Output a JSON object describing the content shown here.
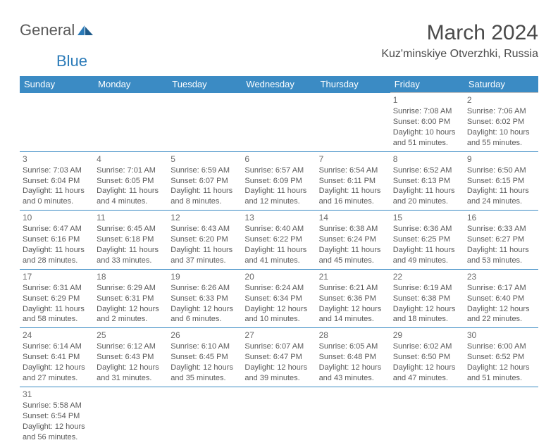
{
  "logo": {
    "general": "General",
    "blue": "Blue"
  },
  "header": {
    "month_title": "March 2024",
    "location": "Kuz'minskiye Otverzhki, Russia"
  },
  "day_names": [
    "Sunday",
    "Monday",
    "Tuesday",
    "Wednesday",
    "Thursday",
    "Friday",
    "Saturday"
  ],
  "colors": {
    "header_bg": "#3b8bc4",
    "header_text": "#ffffff",
    "cell_border_top": "#bfbfbf",
    "cell_border_bottom": "#3b8bc4",
    "text": "#5a5a5a",
    "logo_blue": "#2a7ab8"
  },
  "weeks": [
    [
      null,
      null,
      null,
      null,
      null,
      {
        "n": "1",
        "sr": "Sunrise: 7:08 AM",
        "ss": "Sunset: 6:00 PM",
        "d1": "Daylight: 10 hours",
        "d2": "and 51 minutes."
      },
      {
        "n": "2",
        "sr": "Sunrise: 7:06 AM",
        "ss": "Sunset: 6:02 PM",
        "d1": "Daylight: 10 hours",
        "d2": "and 55 minutes."
      }
    ],
    [
      {
        "n": "3",
        "sr": "Sunrise: 7:03 AM",
        "ss": "Sunset: 6:04 PM",
        "d1": "Daylight: 11 hours",
        "d2": "and 0 minutes."
      },
      {
        "n": "4",
        "sr": "Sunrise: 7:01 AM",
        "ss": "Sunset: 6:05 PM",
        "d1": "Daylight: 11 hours",
        "d2": "and 4 minutes."
      },
      {
        "n": "5",
        "sr": "Sunrise: 6:59 AM",
        "ss": "Sunset: 6:07 PM",
        "d1": "Daylight: 11 hours",
        "d2": "and 8 minutes."
      },
      {
        "n": "6",
        "sr": "Sunrise: 6:57 AM",
        "ss": "Sunset: 6:09 PM",
        "d1": "Daylight: 11 hours",
        "d2": "and 12 minutes."
      },
      {
        "n": "7",
        "sr": "Sunrise: 6:54 AM",
        "ss": "Sunset: 6:11 PM",
        "d1": "Daylight: 11 hours",
        "d2": "and 16 minutes."
      },
      {
        "n": "8",
        "sr": "Sunrise: 6:52 AM",
        "ss": "Sunset: 6:13 PM",
        "d1": "Daylight: 11 hours",
        "d2": "and 20 minutes."
      },
      {
        "n": "9",
        "sr": "Sunrise: 6:50 AM",
        "ss": "Sunset: 6:15 PM",
        "d1": "Daylight: 11 hours",
        "d2": "and 24 minutes."
      }
    ],
    [
      {
        "n": "10",
        "sr": "Sunrise: 6:47 AM",
        "ss": "Sunset: 6:16 PM",
        "d1": "Daylight: 11 hours",
        "d2": "and 28 minutes."
      },
      {
        "n": "11",
        "sr": "Sunrise: 6:45 AM",
        "ss": "Sunset: 6:18 PM",
        "d1": "Daylight: 11 hours",
        "d2": "and 33 minutes."
      },
      {
        "n": "12",
        "sr": "Sunrise: 6:43 AM",
        "ss": "Sunset: 6:20 PM",
        "d1": "Daylight: 11 hours",
        "d2": "and 37 minutes."
      },
      {
        "n": "13",
        "sr": "Sunrise: 6:40 AM",
        "ss": "Sunset: 6:22 PM",
        "d1": "Daylight: 11 hours",
        "d2": "and 41 minutes."
      },
      {
        "n": "14",
        "sr": "Sunrise: 6:38 AM",
        "ss": "Sunset: 6:24 PM",
        "d1": "Daylight: 11 hours",
        "d2": "and 45 minutes."
      },
      {
        "n": "15",
        "sr": "Sunrise: 6:36 AM",
        "ss": "Sunset: 6:25 PM",
        "d1": "Daylight: 11 hours",
        "d2": "and 49 minutes."
      },
      {
        "n": "16",
        "sr": "Sunrise: 6:33 AM",
        "ss": "Sunset: 6:27 PM",
        "d1": "Daylight: 11 hours",
        "d2": "and 53 minutes."
      }
    ],
    [
      {
        "n": "17",
        "sr": "Sunrise: 6:31 AM",
        "ss": "Sunset: 6:29 PM",
        "d1": "Daylight: 11 hours",
        "d2": "and 58 minutes."
      },
      {
        "n": "18",
        "sr": "Sunrise: 6:29 AM",
        "ss": "Sunset: 6:31 PM",
        "d1": "Daylight: 12 hours",
        "d2": "and 2 minutes."
      },
      {
        "n": "19",
        "sr": "Sunrise: 6:26 AM",
        "ss": "Sunset: 6:33 PM",
        "d1": "Daylight: 12 hours",
        "d2": "and 6 minutes."
      },
      {
        "n": "20",
        "sr": "Sunrise: 6:24 AM",
        "ss": "Sunset: 6:34 PM",
        "d1": "Daylight: 12 hours",
        "d2": "and 10 minutes."
      },
      {
        "n": "21",
        "sr": "Sunrise: 6:21 AM",
        "ss": "Sunset: 6:36 PM",
        "d1": "Daylight: 12 hours",
        "d2": "and 14 minutes."
      },
      {
        "n": "22",
        "sr": "Sunrise: 6:19 AM",
        "ss": "Sunset: 6:38 PM",
        "d1": "Daylight: 12 hours",
        "d2": "and 18 minutes."
      },
      {
        "n": "23",
        "sr": "Sunrise: 6:17 AM",
        "ss": "Sunset: 6:40 PM",
        "d1": "Daylight: 12 hours",
        "d2": "and 22 minutes."
      }
    ],
    [
      {
        "n": "24",
        "sr": "Sunrise: 6:14 AM",
        "ss": "Sunset: 6:41 PM",
        "d1": "Daylight: 12 hours",
        "d2": "and 27 minutes."
      },
      {
        "n": "25",
        "sr": "Sunrise: 6:12 AM",
        "ss": "Sunset: 6:43 PM",
        "d1": "Daylight: 12 hours",
        "d2": "and 31 minutes."
      },
      {
        "n": "26",
        "sr": "Sunrise: 6:10 AM",
        "ss": "Sunset: 6:45 PM",
        "d1": "Daylight: 12 hours",
        "d2": "and 35 minutes."
      },
      {
        "n": "27",
        "sr": "Sunrise: 6:07 AM",
        "ss": "Sunset: 6:47 PM",
        "d1": "Daylight: 12 hours",
        "d2": "and 39 minutes."
      },
      {
        "n": "28",
        "sr": "Sunrise: 6:05 AM",
        "ss": "Sunset: 6:48 PM",
        "d1": "Daylight: 12 hours",
        "d2": "and 43 minutes."
      },
      {
        "n": "29",
        "sr": "Sunrise: 6:02 AM",
        "ss": "Sunset: 6:50 PM",
        "d1": "Daylight: 12 hours",
        "d2": "and 47 minutes."
      },
      {
        "n": "30",
        "sr": "Sunrise: 6:00 AM",
        "ss": "Sunset: 6:52 PM",
        "d1": "Daylight: 12 hours",
        "d2": "and 51 minutes."
      }
    ],
    [
      {
        "n": "31",
        "sr": "Sunrise: 5:58 AM",
        "ss": "Sunset: 6:54 PM",
        "d1": "Daylight: 12 hours",
        "d2": "and 56 minutes."
      },
      null,
      null,
      null,
      null,
      null,
      null
    ]
  ]
}
